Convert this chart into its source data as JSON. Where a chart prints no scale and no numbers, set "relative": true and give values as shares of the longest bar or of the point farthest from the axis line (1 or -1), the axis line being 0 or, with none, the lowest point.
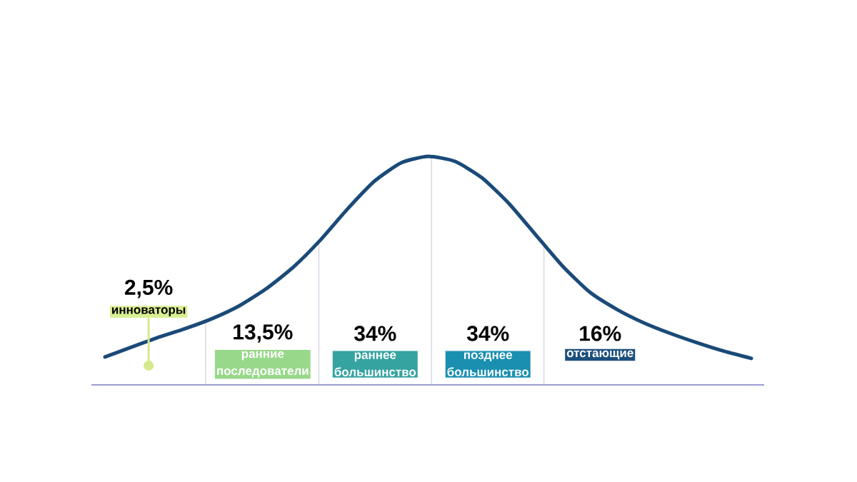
{
  "chart_data": {
    "type": "line",
    "relative": true,
    "categories": [
      null,
      null,
      null,
      null,
      null,
      null,
      null,
      null,
      null,
      null,
      null,
      null,
      null,
      null,
      null,
      null,
      null,
      null,
      null,
      null,
      null,
      null,
      null,
      null,
      null
    ],
    "series": [
      {
        "color": "#1a4a78",
        "values": [
          0.122,
          0.166,
          0.209,
          0.247,
          0.291,
          0.347,
          0.422,
          0.516,
          0.634,
          0.769,
          0.891,
          0.972,
          1.0,
          0.978,
          0.906,
          0.794,
          0.656,
          0.519,
          0.406,
          0.331,
          0.272,
          0.225,
          0.184,
          0.147,
          0.116
        ]
      }
    ],
    "annotations": [
      "2,5%",
      "инноваторы",
      "13,5%",
      "ранние последователи",
      "34%",
      "раннее большинство",
      "34%",
      "позднее большинство",
      "16%",
      "отстающие"
    ]
  }
}
